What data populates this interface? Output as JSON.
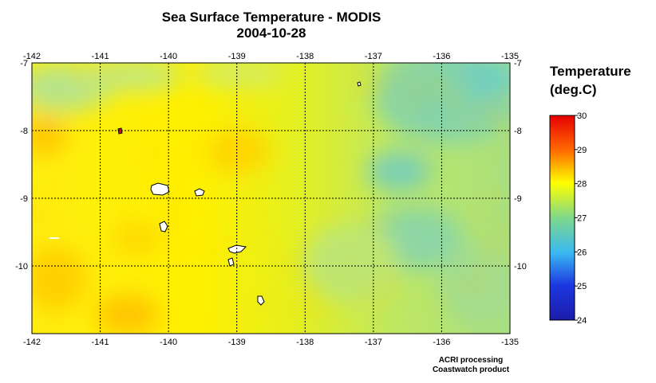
{
  "title_line1": "Sea Surface Temperature - MODIS",
  "title_line2": "2004-10-28",
  "legend": {
    "title_line1": "Temperature",
    "title_line2": "(deg.C)",
    "ticks": [
      "30",
      "29",
      "28",
      "27",
      "26",
      "25",
      "24"
    ],
    "colors": [
      "#e60000",
      "#ff6a00",
      "#ffff00",
      "#7fd88a",
      "#3ab9f2",
      "#1c37e0",
      "#1c1ca8"
    ]
  },
  "map": {
    "lon_labels": [
      "-142",
      "-141",
      "-140",
      "-139",
      "-138",
      "-137",
      "-136",
      "-135"
    ],
    "lat_labels": [
      "-7",
      "-8",
      "-9",
      "-10"
    ],
    "lon_range": [
      -142,
      -135
    ],
    "lat_range": [
      -11,
      -7
    ],
    "grid_color": "#000000",
    "land_color": "#ffffff"
  },
  "credit_line1": "ACRI processing",
  "credit_line2": "Coastwatch product"
}
